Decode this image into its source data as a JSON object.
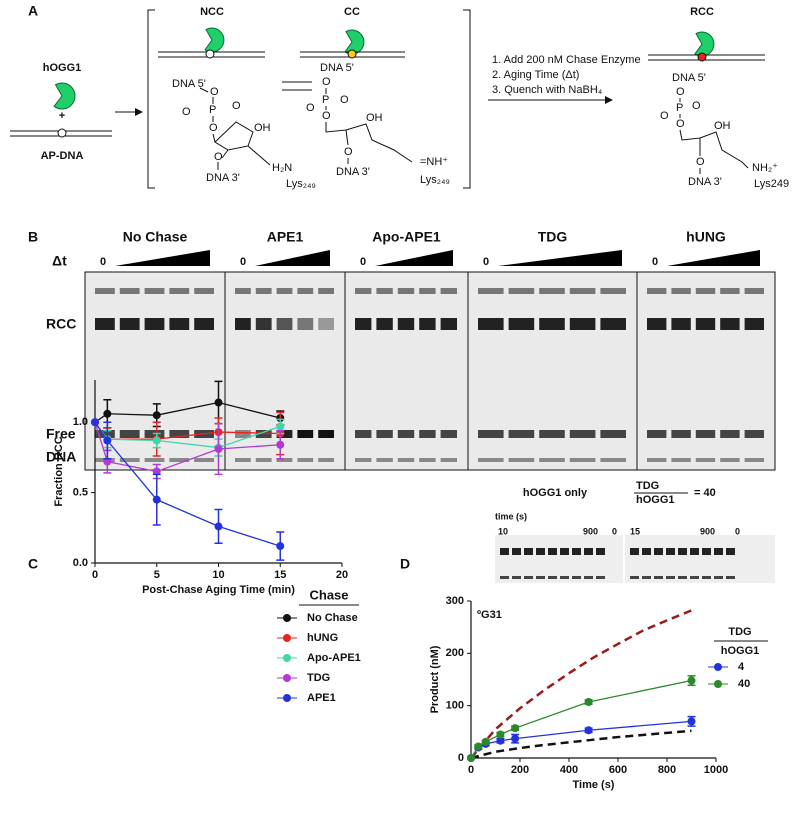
{
  "panel_a": {
    "letter": "A",
    "enzyme": "hOGG1",
    "plus": "+",
    "substrate": "AP-DNA",
    "ncc": {
      "title": "NCC",
      "dna5": "DNA 5'",
      "dna3": "DNA 3'",
      "oh": "OH",
      "amine": "H₂N",
      "lys": "Lys₂₄₉",
      "o": "O",
      "p": "P"
    },
    "cc": {
      "title": "CC",
      "dna5": "DNA 5'",
      "dna3": "DNA 3'",
      "oh": "OH",
      "imine": "=NH⁺",
      "lys": "Lys₂₄₉",
      "o": "O",
      "p": "P"
    },
    "rcc": {
      "title": "RCC",
      "dna5": "DNA 5'",
      "dna3": "DNA 3'",
      "oh": "OH",
      "amine": "NH₂⁺",
      "lys": "Lys249",
      "o": "O",
      "p": "P"
    },
    "steps": [
      "1. Add 200 nM Chase Enzyme",
      "2. Aging Time (Δt)",
      "3. Quench with NaBH₄"
    ]
  },
  "panel_b": {
    "letter": "B",
    "delta": "Δt",
    "gels": [
      "No Chase",
      "APE1",
      "Apo-APE1",
      "TDG",
      "hUNG"
    ],
    "zero": "0",
    "rcc": "RCC",
    "free": [
      "Free",
      "DNA"
    ],
    "inset_left": "hOGG1 only",
    "inset_ratio": {
      "numerator": "TDG",
      "denominator": "hOGG1",
      "equals": "= 40"
    },
    "time_label": "time (s)",
    "left_times": [
      "10",
      "900",
      "0"
    ],
    "right_times": [
      "15",
      "900",
      "0"
    ]
  },
  "chart_data": [
    {
      "type": "line",
      "letter": "C",
      "x_label": "Post-Chase Aging Time (min)",
      "y_label": "Fraction RCC",
      "x": [
        0,
        1,
        5,
        10,
        15
      ],
      "xlim": [
        0,
        20
      ],
      "xticks": [
        0,
        5,
        10,
        15,
        20
      ],
      "ylim": [
        0,
        1.3
      ],
      "yticks": [
        {
          "value": 0,
          "label": "0.0"
        },
        {
          "value": 0.5,
          "label": "0.5"
        },
        {
          "value": 1,
          "label": "1.0"
        }
      ],
      "legend_title": "Chase",
      "series": [
        {
          "name": "No Chase",
          "color": "#111111",
          "values": [
            1.0,
            1.06,
            1.05,
            1.14,
            1.03
          ],
          "errors": [
            0,
            0.1,
            0.08,
            0.15,
            0.05
          ]
        },
        {
          "name": "hUNG",
          "color": "#e8241f",
          "values": [
            1.0,
            0.88,
            0.88,
            0.93,
            0.92
          ],
          "errors": [
            0,
            0.08,
            0.12,
            0.1,
            0.15
          ]
        },
        {
          "name": "Apo-APE1",
          "color": "#3fd6a8",
          "values": [
            1.0,
            0.88,
            0.87,
            0.82,
            0.97
          ],
          "errors": [
            0,
            0.06,
            0.05,
            0.06,
            0.05
          ]
        },
        {
          "name": "TDG",
          "color": "#b03bd3",
          "values": [
            1.0,
            0.72,
            0.65,
            0.81,
            0.84
          ],
          "errors": [
            0,
            0.08,
            0.05,
            0.18,
            0.1
          ]
        },
        {
          "name": "APE1",
          "color": "#2233dd",
          "values": [
            1.0,
            0.87,
            0.45,
            0.26,
            0.12
          ],
          "errors": [
            0,
            0.13,
            0.18,
            0.12,
            0.1
          ]
        }
      ]
    },
    {
      "type": "line",
      "letter": "D",
      "x_label": "Time (s)",
      "y_label": "Product (nM)",
      "annotation": "ºG31",
      "xlim": [
        0,
        1000
      ],
      "xticks": [
        0,
        200,
        400,
        600,
        800,
        1000
      ],
      "ylim": [
        0,
        300
      ],
      "yticks": [
        0,
        100,
        200,
        300
      ],
      "legend_title": {
        "numerator": "TDG",
        "denominator": "hOGG1"
      },
      "series": [
        {
          "color": "#9b1a1a",
          "dash": true,
          "x": [
            0,
            100,
            200,
            300,
            400,
            500,
            600,
            700,
            800,
            900
          ],
          "values": [
            0,
            55,
            95,
            130,
            162,
            192,
            218,
            243,
            263,
            282
          ]
        },
        {
          "color": "#111111",
          "dash": true,
          "x": [
            0,
            100,
            200,
            300,
            400,
            500,
            600,
            700,
            800,
            900
          ],
          "values": [
            0,
            12,
            19,
            25,
            30,
            35,
            40,
            44,
            48,
            52
          ]
        },
        {
          "name": "4",
          "color": "#2233dd",
          "x": [
            0,
            30,
            60,
            120,
            180,
            480,
            900
          ],
          "values": [
            0,
            20,
            27,
            33,
            37,
            53,
            70
          ],
          "errors": [
            0,
            3,
            3,
            4,
            8,
            4,
            9
          ]
        },
        {
          "name": "40",
          "color": "#2a8a2a",
          "x": [
            0,
            30,
            60,
            120,
            180,
            480,
            900
          ],
          "values": [
            0,
            22,
            31,
            45,
            57,
            107,
            148
          ],
          "errors": [
            0,
            3,
            3,
            4,
            4,
            4,
            9
          ]
        }
      ]
    }
  ]
}
